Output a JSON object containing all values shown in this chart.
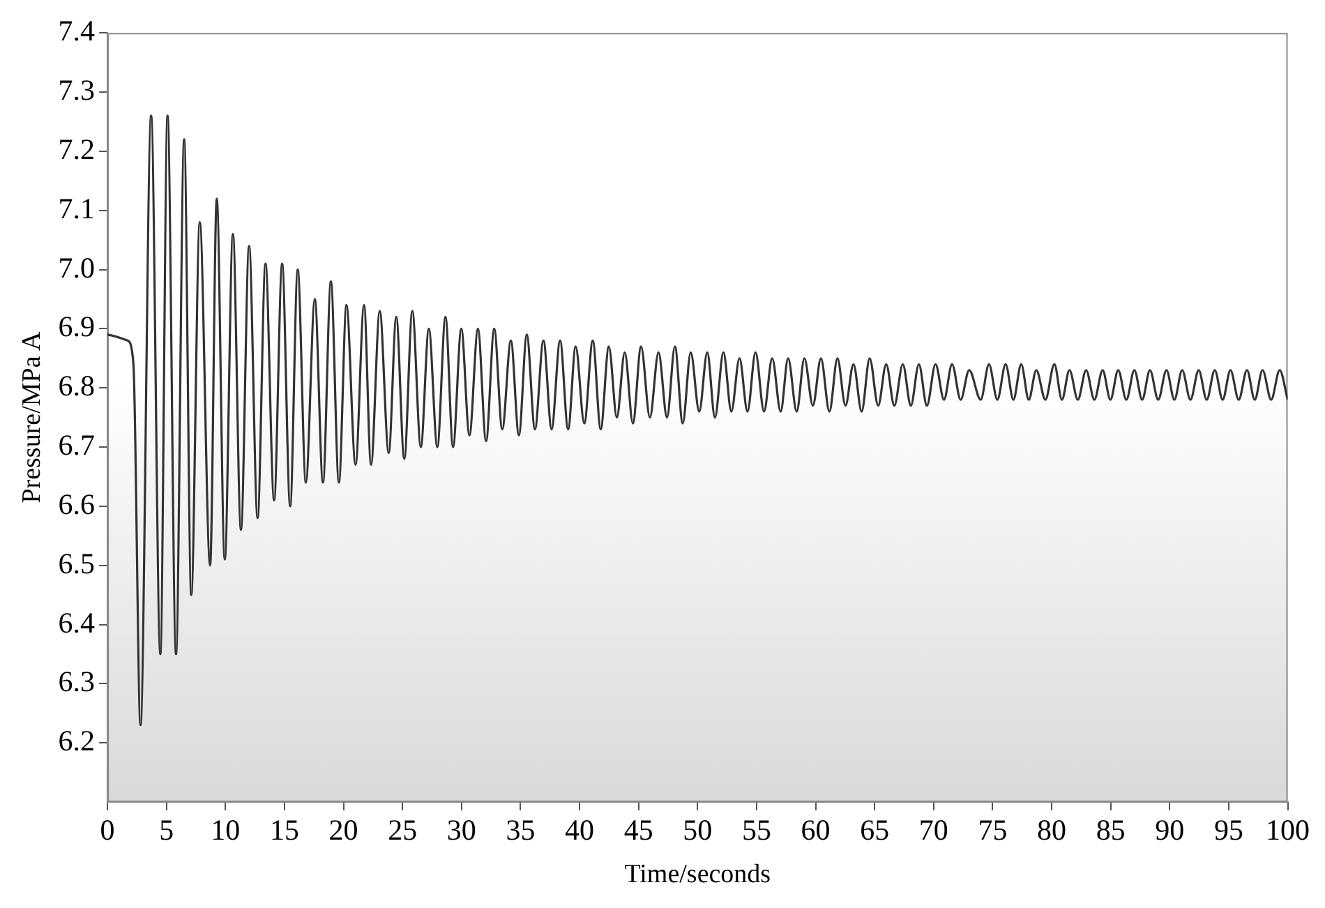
{
  "chart_data": {
    "type": "line",
    "xlabel": "Time/seconds",
    "ylabel": "Pressure/MPa A",
    "xlim": [
      0,
      100
    ],
    "xticks": [
      0,
      5,
      10,
      15,
      20,
      25,
      30,
      35,
      40,
      45,
      50,
      55,
      60,
      65,
      70,
      75,
      80,
      85,
      90,
      95,
      100
    ],
    "ylim": [
      6.1,
      7.4
    ],
    "yticks": [
      6.2,
      6.3,
      6.4,
      6.5,
      6.6,
      6.7,
      6.8,
      6.9,
      {
        "value": 7.0,
        "label": "7.0"
      },
      7.1,
      7.2,
      7.3,
      7.4
    ],
    "grid": false,
    "legend": false,
    "marker": "none",
    "line_style": "solid",
    "series": [
      {
        "color": "#333333",
        "x": [
          0,
          1.7,
          2.2,
          2.8,
          3.7,
          4.48,
          5.09,
          5.81,
          6.5,
          7.1,
          7.82,
          8.7,
          9.26,
          9.94,
          10.63,
          11.31,
          12.0,
          12.72,
          13.39,
          14.12,
          14.8,
          15.48,
          16.12,
          16.81,
          17.57,
          18.26,
          18.93,
          19.61,
          20.25,
          21.02,
          21.74,
          22.33,
          23.07,
          23.83,
          24.47,
          25.15,
          25.83,
          26.55,
          27.23,
          27.95,
          28.64,
          29.28,
          29.98,
          30.67,
          31.39,
          32.08,
          32.77,
          33.45,
          34.18,
          34.86,
          35.53,
          36.22,
          36.94,
          37.63,
          38.35,
          39.03,
          39.67,
          40.4,
          41.12,
          41.79,
          42.48,
          43.16,
          43.83,
          44.52,
          45.21,
          45.96,
          46.69,
          47.41,
          48.08,
          48.74,
          49.42,
          50.14,
          50.82,
          51.47,
          52.19,
          52.86,
          53.55,
          54.23,
          54.91,
          55.63,
          56.32,
          57.04,
          57.67,
          58.4,
          59.05,
          59.77,
          60.45,
          61.17,
          61.85,
          62.53,
          63.21,
          63.9,
          64.58,
          65.3,
          65.98,
          66.67,
          67.39,
          68.07,
          68.75,
          69.43,
          70.16,
          70.88,
          71.56,
          72.29,
          73.01,
          73.99,
          74.69,
          75.4,
          76.1,
          76.76,
          77.42,
          78.06,
          78.7,
          79.47,
          80.23,
          80.87,
          81.51,
          82.22,
          82.92,
          83.62,
          84.32,
          84.98,
          85.64,
          86.33,
          87.01,
          87.67,
          88.33,
          89.03,
          89.73,
          90.4,
          91.06,
          91.76,
          92.46,
          93.14,
          93.82,
          94.49,
          95.15,
          95.85,
          96.55,
          97.21,
          97.87,
          98.6,
          99.32,
          100
        ],
        "values": [
          6.89,
          6.88,
          6.84,
          6.23,
          7.26,
          6.35,
          7.26,
          6.35,
          7.22,
          6.45,
          7.08,
          6.5,
          7.12,
          6.51,
          7.06,
          6.56,
          7.04,
          6.58,
          7.01,
          6.61,
          7.01,
          6.6,
          7.0,
          6.64,
          6.95,
          6.64,
          6.98,
          6.64,
          6.94,
          6.67,
          6.94,
          6.67,
          6.93,
          6.69,
          6.92,
          6.68,
          6.93,
          6.7,
          6.9,
          6.7,
          6.92,
          6.7,
          6.9,
          6.72,
          6.9,
          6.71,
          6.9,
          6.73,
          6.88,
          6.72,
          6.89,
          6.73,
          6.88,
          6.73,
          6.88,
          6.73,
          6.87,
          6.74,
          6.88,
          6.73,
          6.87,
          6.75,
          6.86,
          6.74,
          6.87,
          6.75,
          6.86,
          6.75,
          6.87,
          6.74,
          6.86,
          6.76,
          6.86,
          6.75,
          6.86,
          6.76,
          6.85,
          6.76,
          6.86,
          6.76,
          6.85,
          6.76,
          6.85,
          6.76,
          6.85,
          6.77,
          6.85,
          6.76,
          6.85,
          6.77,
          6.84,
          6.76,
          6.85,
          6.77,
          6.84,
          6.77,
          6.84,
          6.77,
          6.84,
          6.77,
          6.84,
          6.78,
          6.84,
          6.78,
          6.83,
          6.78,
          6.84,
          6.78,
          6.84,
          6.78,
          6.84,
          6.78,
          6.83,
          6.78,
          6.84,
          6.78,
          6.83,
          6.78,
          6.83,
          6.78,
          6.83,
          6.78,
          6.83,
          6.78,
          6.83,
          6.78,
          6.83,
          6.78,
          6.83,
          6.78,
          6.83,
          6.78,
          6.83,
          6.78,
          6.83,
          6.78,
          6.83,
          6.78,
          6.83,
          6.78,
          6.83,
          6.78,
          6.83,
          6.78
        ]
      }
    ]
  }
}
